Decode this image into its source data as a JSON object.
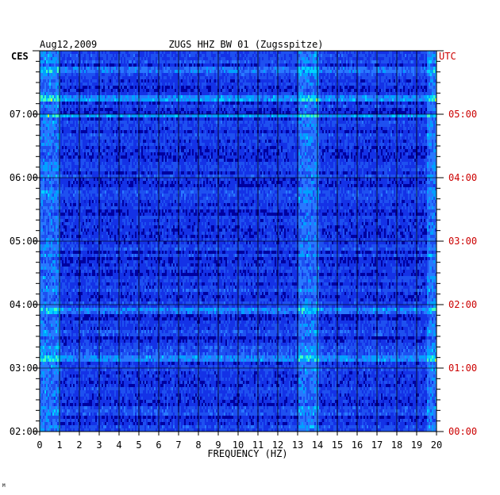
{
  "chart_data": {
    "type": "heatmap",
    "title": "ZUGS HHZ BW 01 (Zugsspitze)",
    "date": "Aug12,2009",
    "xlabel": "FREQUENCY (HZ)",
    "left_axis_label": "CES",
    "right_axis_label": "UTC",
    "xlim": [
      0,
      20
    ],
    "x_ticks": [
      "0",
      "1",
      "2",
      "3",
      "4",
      "5",
      "6",
      "7",
      "8",
      "9",
      "10",
      "11",
      "12",
      "13",
      "14",
      "15",
      "16",
      "17",
      "18",
      "19",
      "20"
    ],
    "left_time_ticks": [
      "02:00",
      "03:00",
      "04:00",
      "05:00",
      "06:00",
      "07:00"
    ],
    "right_time_ticks": [
      "00:00",
      "01:00",
      "02:00",
      "03:00",
      "04:00",
      "05:00"
    ],
    "time_range_ces": [
      "02:00",
      "08:00"
    ],
    "grid": true,
    "colors": {
      "low": "#0000a0",
      "mid": "#1e50e6",
      "high": "#00c8ff",
      "peak": "#ffff00",
      "max": "#ff0000",
      "right_axis_text": "#cc0000",
      "frame": "#000000"
    },
    "bright_rows_ces": [
      "03:10",
      "03:56",
      "07:00",
      "07:17",
      "07:43"
    ],
    "energetic_frequency_bands_hz": [
      [
        0,
        1
      ],
      [
        13,
        14
      ],
      [
        19.5,
        20
      ]
    ]
  },
  "footer_mark": "M"
}
